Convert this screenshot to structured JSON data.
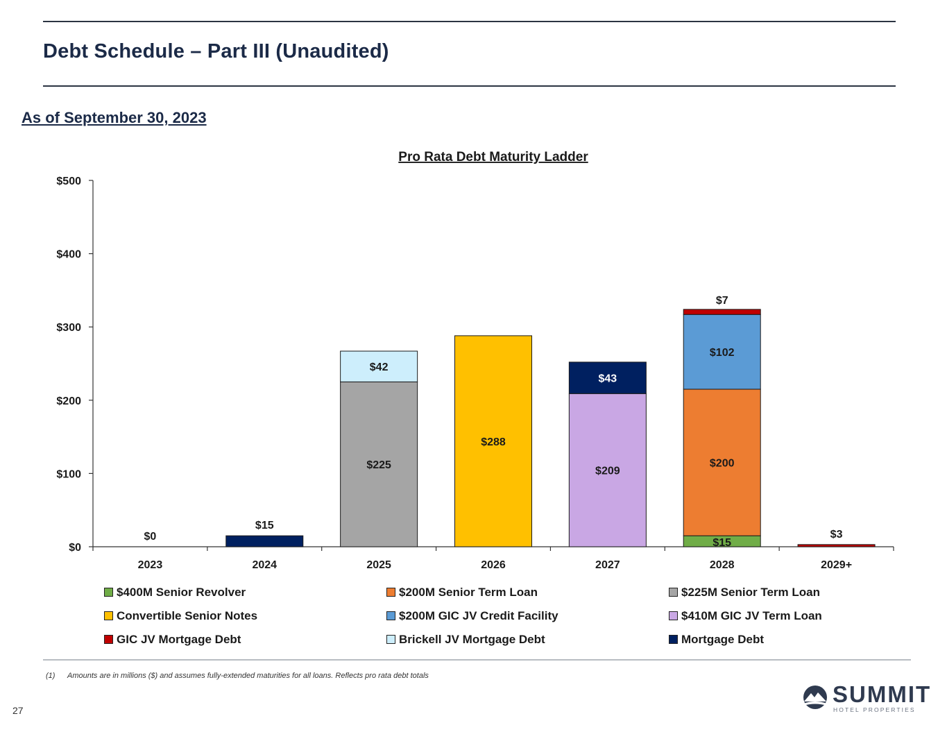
{
  "header": {
    "title": "Debt Schedule – Part III (Unaudited)",
    "as_of": "As of September 30, 2023"
  },
  "chart_data": {
    "type": "bar",
    "stacked": true,
    "title": "Pro Rata Debt Maturity Ladder",
    "xlabel": "",
    "ylabel": "",
    "ylim": [
      0,
      500
    ],
    "y_ticks": [
      0,
      100,
      200,
      300,
      400,
      500
    ],
    "y_tick_labels": [
      "$0",
      "$100",
      "$200",
      "$300",
      "$400",
      "$500"
    ],
    "categories": [
      "2023",
      "2024",
      "2025",
      "2026",
      "2027",
      "2028",
      "2029+"
    ],
    "series": [
      {
        "name": "$400M Senior Revolver",
        "color": "#70ad47",
        "values": [
          0,
          0,
          0,
          0,
          0,
          15,
          0
        ],
        "labels": [
          "",
          "",
          "",
          "",
          "",
          "$15",
          ""
        ]
      },
      {
        "name": "$200M Senior Term Loan",
        "color": "#ed7d31",
        "values": [
          0,
          0,
          0,
          0,
          0,
          200,
          0
        ],
        "labels": [
          "",
          "",
          "",
          "",
          "",
          "$200",
          ""
        ]
      },
      {
        "name": "$225M Senior Term Loan",
        "color": "#a5a5a5",
        "values": [
          0,
          0,
          225,
          0,
          0,
          0,
          0
        ],
        "labels": [
          "",
          "",
          "$225",
          "",
          "",
          "",
          ""
        ]
      },
      {
        "name": "Convertible Senior Notes",
        "color": "#ffc000",
        "values": [
          0,
          0,
          0,
          288,
          0,
          0,
          0
        ],
        "labels": [
          "",
          "",
          "",
          "$288",
          "",
          "",
          ""
        ]
      },
      {
        "name": "$200M GIC JV Credit Facility",
        "color": "#5b9bd5",
        "values": [
          0,
          0,
          0,
          0,
          0,
          102,
          0
        ],
        "labels": [
          "",
          "",
          "",
          "",
          "",
          "$102",
          ""
        ]
      },
      {
        "name": "$410M GIC JV Term Loan",
        "color": "#c9a7e4",
        "values": [
          0,
          0,
          0,
          0,
          209,
          0,
          0
        ],
        "labels": [
          "",
          "",
          "",
          "",
          "$209",
          "",
          ""
        ]
      },
      {
        "name": "GIC JV Mortgage Debt",
        "color": "#c00000",
        "values": [
          0,
          0,
          0,
          0,
          0,
          7,
          3
        ],
        "labels": [
          "",
          "",
          "",
          "",
          "",
          "$7",
          "$3"
        ]
      },
      {
        "name": "Brickell JV Mortgage Debt",
        "color": "#cdeefc",
        "values": [
          0,
          0,
          42,
          0,
          0,
          0,
          0
        ],
        "labels": [
          "",
          "",
          "$42",
          "",
          "",
          "",
          ""
        ]
      },
      {
        "name": "Mortgage Debt",
        "color": "#002060",
        "values": [
          0,
          15,
          0,
          0,
          43,
          0,
          0
        ],
        "labels": [
          "$0",
          "$15",
          "",
          "",
          "$43",
          "",
          ""
        ]
      }
    ],
    "legend_position": "bottom"
  },
  "footnote": {
    "number": "(1)",
    "text": "Amounts are in millions ($) and assumes fully-extended maturities for all loans. Reflects pro rata debt totals"
  },
  "page_number": "27",
  "logo": {
    "name": "SUMMIT",
    "tagline": "HOTEL PROPERTIES",
    "icon": "mountain-logo-icon"
  }
}
